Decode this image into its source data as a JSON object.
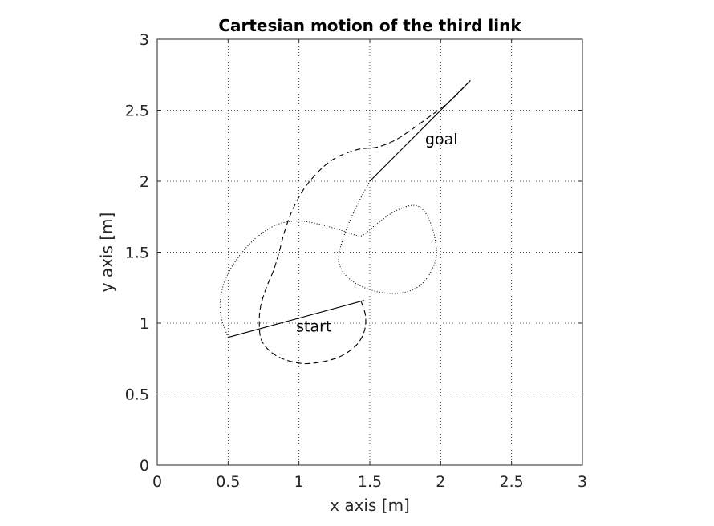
{
  "chart_data": {
    "type": "line",
    "title": "Cartesian motion of the third link",
    "xlabel": "x axis [m]",
    "ylabel": "y axis [m]",
    "xlim": [
      0,
      3
    ],
    "ylim": [
      0,
      3
    ],
    "xticks": [
      0,
      0.5,
      1,
      1.5,
      2,
      2.5,
      3
    ],
    "yticks": [
      0,
      0.5,
      1,
      1.5,
      2,
      2.5,
      3
    ],
    "xtick_labels": [
      "0",
      "0.5",
      "1",
      "1.5",
      "2",
      "2.5",
      "3"
    ],
    "ytick_labels": [
      "0",
      "0.5",
      "1",
      "1.5",
      "2",
      "2.5",
      "3"
    ],
    "grid": true,
    "grid_style": "dotted",
    "series": [
      {
        "style": "solid",
        "x": [
          0.5,
          1.46
        ],
        "y": [
          0.9,
          1.16
        ]
      },
      {
        "style": "solid",
        "x": [
          1.5,
          2.21
        ],
        "y": [
          2.0,
          2.71
        ]
      },
      {
        "style": "dashed",
        "x": [
          1.44,
          1.47,
          1.46,
          1.4,
          1.28,
          1.12,
          0.99,
          0.84,
          0.74,
          0.72,
          0.73,
          0.77,
          0.82,
          0.86,
          0.9,
          0.96,
          1.06,
          1.22,
          1.4,
          1.55,
          1.66,
          1.76,
          1.9,
          2.06,
          2.21
        ],
        "y": [
          1.15,
          1.05,
          0.94,
          0.84,
          0.76,
          0.72,
          0.72,
          0.77,
          0.87,
          1.0,
          1.12,
          1.25,
          1.37,
          1.5,
          1.65,
          1.81,
          1.98,
          2.14,
          2.22,
          2.24,
          2.28,
          2.34,
          2.44,
          2.56,
          2.71
        ]
      },
      {
        "style": "dotted",
        "x": [
          0.5,
          0.45,
          0.45,
          0.5,
          0.6,
          0.72,
          0.86,
          1.0,
          1.13,
          1.28,
          1.4,
          1.45,
          1.55,
          1.68,
          1.81,
          1.89,
          1.95,
          1.97,
          1.93,
          1.86,
          1.76,
          1.64,
          1.52,
          1.4,
          1.32,
          1.28,
          1.3,
          1.35,
          1.42,
          1.5
        ],
        "y": [
          0.9,
          1.05,
          1.2,
          1.35,
          1.5,
          1.62,
          1.7,
          1.72,
          1.7,
          1.66,
          1.62,
          1.62,
          1.7,
          1.79,
          1.83,
          1.78,
          1.64,
          1.48,
          1.36,
          1.27,
          1.22,
          1.21,
          1.23,
          1.28,
          1.35,
          1.44,
          1.56,
          1.7,
          1.85,
          2.0
        ]
      }
    ],
    "annotations": [
      {
        "text": "start",
        "x": 0.98,
        "y": 0.94
      },
      {
        "text": "goal",
        "x": 1.89,
        "y": 2.26
      }
    ]
  }
}
